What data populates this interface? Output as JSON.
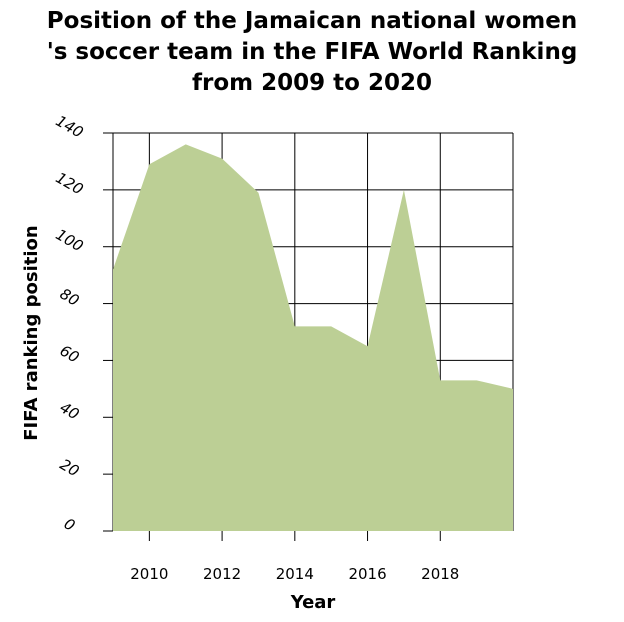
{
  "chart_data": {
    "type": "area",
    "title_lines": [
      "Position of the Jamaican national women",
      "'s soccer team in the FIFA World Ranking",
      "from 2009 to 2020"
    ],
    "xlabel": "Year",
    "ylabel": "FIFA ranking position",
    "x_ticks": [
      2010,
      2012,
      2014,
      2016,
      2018
    ],
    "y_ticks": [
      0,
      20,
      40,
      60,
      80,
      100,
      120,
      140
    ],
    "xlim": [
      2009,
      2020
    ],
    "ylim": [
      0,
      140
    ],
    "grid": true,
    "fill_color": "#bccf95",
    "x": [
      2009,
      2010,
      2011,
      2012,
      2013,
      2014,
      2015,
      2016,
      2017,
      2018,
      2019,
      2020
    ],
    "values": [
      92,
      129,
      136,
      131,
      119,
      72,
      72,
      65,
      120,
      53,
      53,
      50
    ]
  }
}
